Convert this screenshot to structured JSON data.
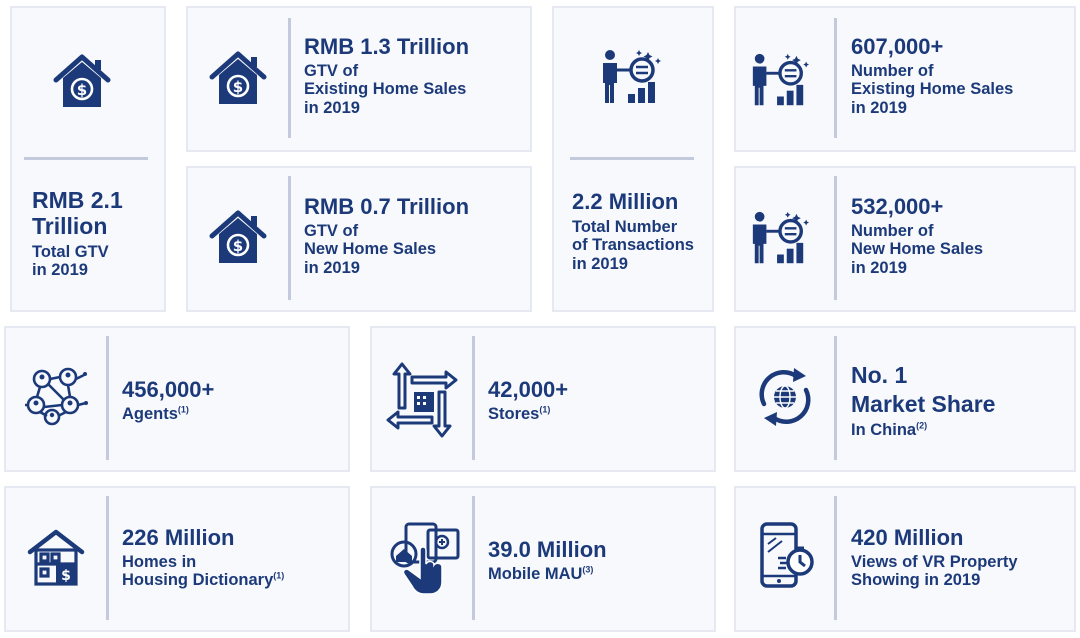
{
  "total_gtv": {
    "value_line1": "RMB 2.1",
    "value_line2": "Trillion",
    "label_line1": "Total GTV",
    "label_line2": "in 2019"
  },
  "existing_gtv": {
    "value": "RMB 1.3 Trillion",
    "label_line1": "GTV of",
    "label_line2": "Existing Home Sales",
    "label_line3": "in 2019"
  },
  "new_gtv": {
    "value": "RMB 0.7 Trillion",
    "label_line1": "GTV of",
    "label_line2": "New Home Sales",
    "label_line3": "in 2019"
  },
  "transactions": {
    "value": "2.2 Million",
    "label_line1": "Total Number",
    "label_line2": "of Transactions",
    "label_line3": "in 2019"
  },
  "existing_sales": {
    "value": "607,000+",
    "label_line1": "Number of",
    "label_line2": "Existing Home Sales",
    "label_line3": "in 2019"
  },
  "new_sales": {
    "value": "532,000+",
    "label_line1": "Number of",
    "label_line2": "New Home Sales",
    "label_line3": "in 2019"
  },
  "agents": {
    "value": "456,000+",
    "label": "Agents",
    "footnote": "(1)"
  },
  "stores": {
    "value": "42,000+",
    "label": "Stores",
    "footnote": "(1)"
  },
  "market": {
    "value_line1": "No. 1",
    "value_line2": "Market Share",
    "label": "In China",
    "footnote": "(2)"
  },
  "homes": {
    "value": "226 Million",
    "label_line1": "Homes in",
    "label_line2": "Housing Dictionary",
    "footnote": "(1)"
  },
  "mau": {
    "value": "39.0 Million",
    "label": "Mobile MAU",
    "footnote": "(3)"
  },
  "vr": {
    "value": "420 Million",
    "label_line1": "Views of VR Property",
    "label_line2": "Showing in 2019"
  },
  "colors": {
    "primary": "#1c3a7a",
    "card_bg": "#f8f9fc",
    "border": "#e6e9f1",
    "divider": "#c2cadb"
  },
  "icons": [
    "house-dollar-icon",
    "person-magnifier-chart-icon",
    "agents-network-icon",
    "stores-arrows-icon",
    "globe-refresh-icon",
    "house-dictionary-icon",
    "mobile-touch-icon",
    "vr-phone-icon"
  ]
}
